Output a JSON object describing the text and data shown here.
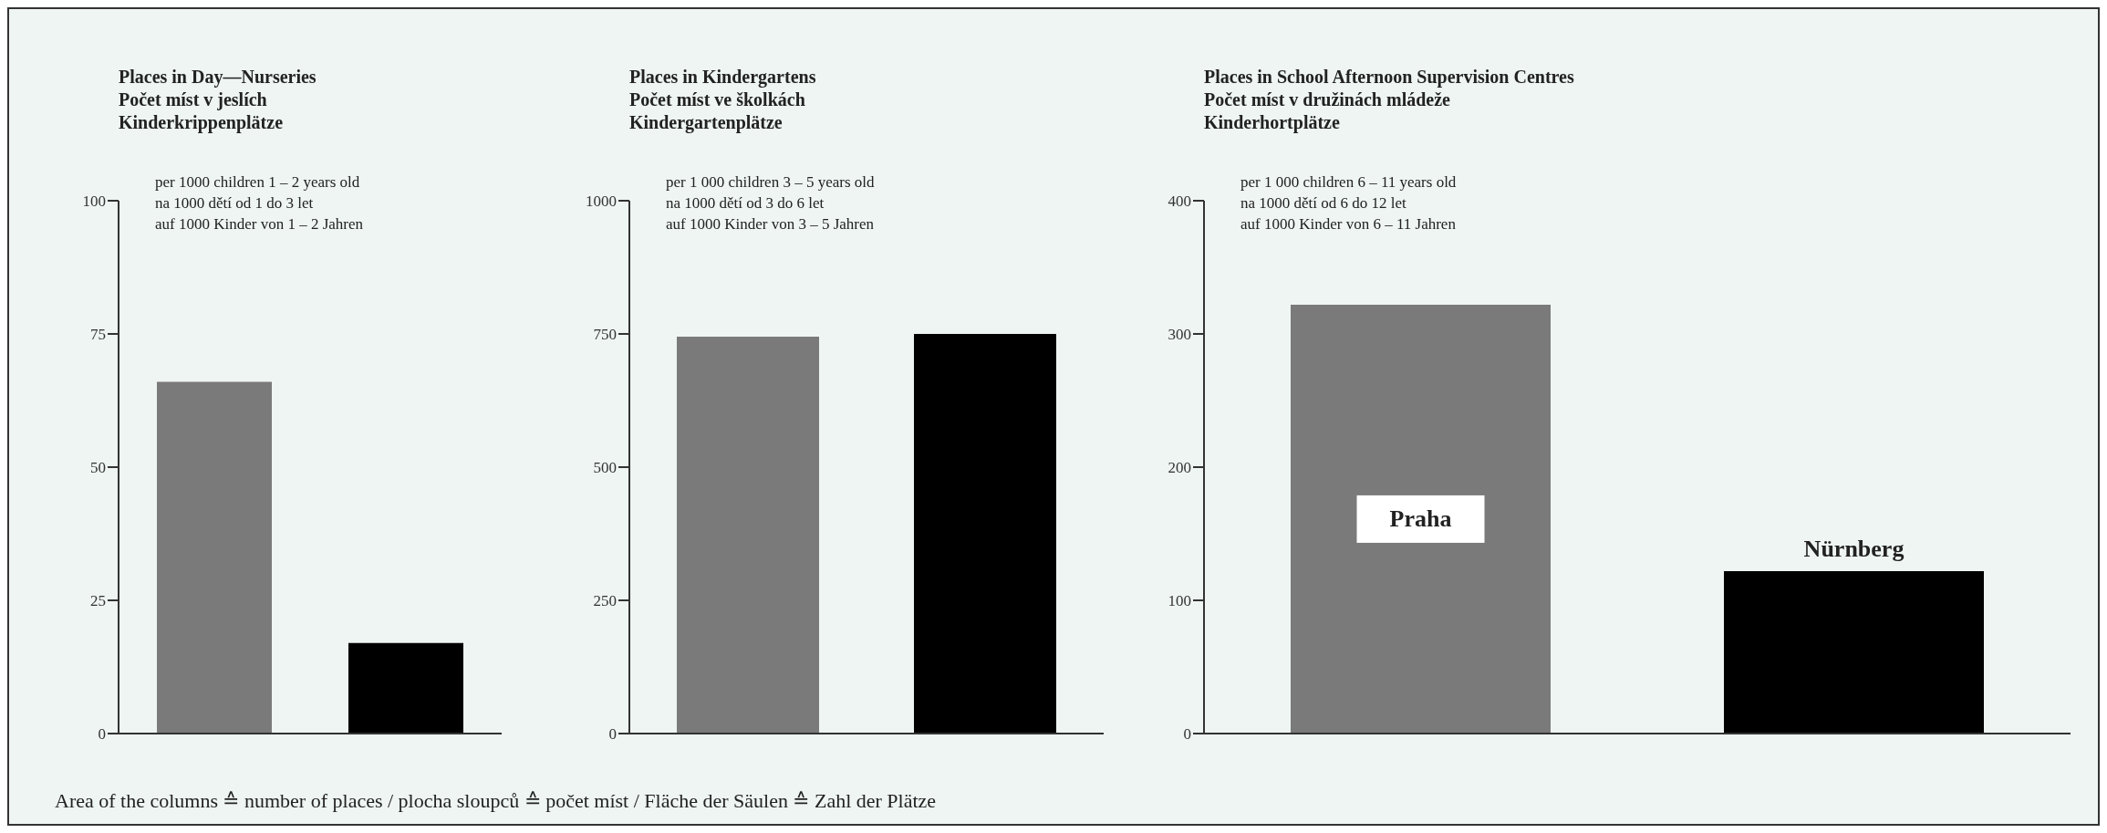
{
  "chart_data": [
    {
      "type": "bar",
      "title": "Places in Day—Nurseries\nPočet míst v jeslích\nKinderkrippenplätze",
      "subtitle": "per 1000 children 1 – 2 years old\nna 1000 dětí od 1 do 3 let\nauf 1000 Kinder von 1 – 2 Jahren",
      "categories": [
        null,
        null
      ],
      "values": [
        66,
        17
      ],
      "colors": [
        "#7a7a7a",
        "#000000"
      ],
      "ylim": [
        0,
        100
      ],
      "yticks": [
        0,
        25,
        50,
        75,
        100
      ],
      "tick_labels": "y",
      "annotations": [
        "Area of the columns ≙ number of places / plocha sloupců ≙ počet míst / Fläche der Säulen ≙ Zahl der Plätze"
      ]
    },
    {
      "type": "bar",
      "title": "Places in Kindergartens\nPočet míst ve školkách\nKindergartenplätze",
      "subtitle": "per 1 000 children 3 – 5 years old\nna 1000 dětí od 3 do 6 let\nauf 1000 Kinder von 3 – 5 Jahren",
      "categories": [
        null,
        null
      ],
      "values": [
        745,
        750
      ],
      "colors": [
        "#7a7a7a",
        "#000000"
      ],
      "ylim": [
        0,
        1000
      ],
      "yticks": [
        0,
        250,
        500,
        750,
        1000
      ],
      "tick_labels": "y"
    },
    {
      "type": "bar",
      "title": "Places in School Afternoon Supervision Centres\nPočet míst v družinách mládeže\nKinderhortplätze",
      "subtitle": "per 1 000 children 6 – 11 years old\nna 1000 dětí od 6 do 12 let\nauf 1000 Kinder von 6 – 11 Jahren",
      "categories": [
        "Praha",
        "Nürnberg"
      ],
      "values": [
        322,
        122
      ],
      "colors": [
        "#7a7a7a",
        "#000000"
      ],
      "ylim": [
        0,
        400
      ],
      "yticks": [
        0,
        100,
        200,
        300,
        400
      ],
      "tick_labels": "y"
    }
  ]
}
